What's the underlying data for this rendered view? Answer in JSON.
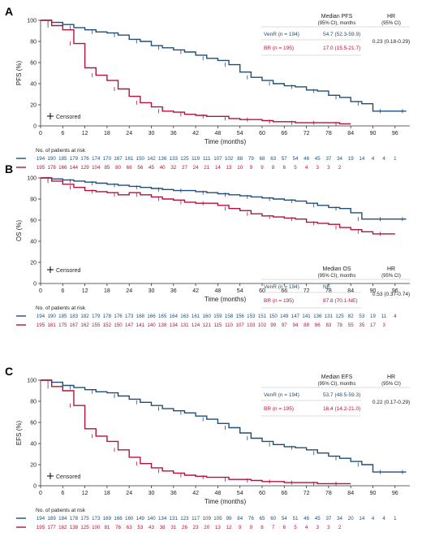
{
  "colors": {
    "venr": "#1f4e79",
    "br": "#b5123a",
    "axis": "#333333",
    "grid": "#cfcfcf"
  },
  "risk_title": "No. of patients at risk",
  "x_ticks": [
    0,
    6,
    12,
    18,
    24,
    30,
    36,
    42,
    48,
    54,
    60,
    66,
    72,
    78,
    84,
    90,
    96
  ],
  "x_risk_times": [
    0,
    3,
    6,
    9,
    12,
    15,
    18,
    21,
    24,
    27,
    30,
    33,
    36,
    39,
    42,
    45,
    48,
    51,
    54,
    57,
    60,
    63,
    66,
    69,
    72,
    75,
    78,
    81,
    84,
    87,
    90,
    93,
    96,
    99
  ],
  "y_ticks": [
    0,
    20,
    40,
    60,
    80,
    100
  ],
  "chart_data": [
    {
      "panel": "A",
      "type": "line",
      "xlabel": "Time (months)",
      "ylabel": "PFS (%)",
      "xlim": [
        0,
        100
      ],
      "ylim": [
        0,
        100
      ],
      "censored_label": "Censored",
      "legend_table": {
        "col1": "Median PFS",
        "col1_sub": "(95% CI), months",
        "col2": "HR",
        "col2_sub": "(95% CI)",
        "rows": [
          {
            "label": "VenR (n = 194)",
            "median": "54.7 (52.3-59.9)"
          },
          {
            "label": "BR (n = 195)",
            "median": "17.0 (15.5-21.7)"
          }
        ],
        "hr": "0.23 (0.18-0.29)"
      },
      "series": [
        {
          "name": "VenR (n = 194)",
          "x": [
            0,
            3,
            6,
            9,
            12,
            15,
            18,
            21,
            24,
            27,
            30,
            33,
            36,
            39,
            42,
            45,
            48,
            51,
            54,
            57,
            60,
            63,
            66,
            69,
            72,
            75,
            78,
            81,
            84,
            87,
            90,
            93,
            96,
            99
          ],
          "y": [
            100,
            98,
            96,
            93,
            91,
            89,
            88,
            86,
            82,
            80,
            76,
            74,
            72,
            70,
            67,
            64,
            62,
            58,
            51,
            46,
            43,
            40,
            38,
            37,
            34,
            33,
            29,
            27,
            23,
            21,
            14,
            14,
            14,
            14
          ],
          "risk": [
            "194",
            "190",
            "185",
            "179",
            "176",
            "174",
            "170",
            "167",
            "161",
            "150",
            "142",
            "136",
            "133",
            "125",
            "119",
            "111",
            "107",
            "102",
            "88",
            "79",
            "68",
            "63",
            "57",
            "54",
            "46",
            "45",
            "37",
            "34",
            "19",
            "14",
            "4",
            "4",
            "1",
            ""
          ]
        },
        {
          "name": "BR (n = 195)",
          "x": [
            0,
            3,
            6,
            9,
            12,
            15,
            18,
            21,
            24,
            27,
            30,
            33,
            36,
            39,
            42,
            45,
            48,
            51,
            54,
            57,
            60,
            63,
            66,
            69,
            72,
            75,
            78,
            81,
            84
          ],
          "y": [
            100,
            95,
            91,
            78,
            55,
            48,
            43,
            35,
            28,
            22,
            18,
            14,
            13,
            11,
            10,
            9,
            9,
            7,
            6,
            6,
            5,
            4,
            4,
            3,
            3,
            3,
            3,
            2,
            2
          ],
          "risk": [
            "195",
            "178",
            "166",
            "144",
            "129",
            "104",
            "85",
            "80",
            "66",
            "56",
            "45",
            "40",
            "32",
            "27",
            "24",
            "21",
            "14",
            "13",
            "10",
            "9",
            "9",
            "8",
            "6",
            "5",
            "4",
            "3",
            "3",
            "2",
            "",
            "",
            "",
            "",
            "",
            ""
          ]
        }
      ]
    },
    {
      "panel": "B",
      "type": "line",
      "xlabel": "Time (months)",
      "ylabel": "OS (%)",
      "xlim": [
        0,
        100
      ],
      "ylim": [
        0,
        100
      ],
      "censored_label": "Censored",
      "legend_table": {
        "col1": "Median OS",
        "col1_sub": "(95% CI), months",
        "col2": "HR",
        "col2_sub": "(95% CI)",
        "rows": [
          {
            "label": "VenR (n = 194)",
            "median": "NE"
          },
          {
            "label": "BR (n = 195)",
            "median": "87.8 (70.1-NE)"
          }
        ],
        "hr": "0.53 (0.37-0.74)"
      },
      "series": [
        {
          "name": "VenR (n = 194)",
          "x": [
            0,
            3,
            6,
            9,
            12,
            15,
            18,
            21,
            24,
            27,
            30,
            33,
            36,
            39,
            42,
            45,
            48,
            51,
            54,
            57,
            60,
            63,
            66,
            69,
            72,
            75,
            78,
            81,
            84,
            87,
            90,
            93,
            96,
            99
          ],
          "y": [
            100,
            99,
            98,
            97,
            96,
            95,
            94,
            93,
            92,
            91,
            90,
            89,
            88,
            88,
            87,
            86,
            85,
            84,
            83,
            82,
            81,
            80,
            79,
            78,
            76,
            74,
            72,
            71,
            67,
            61,
            61,
            61,
            61,
            61
          ],
          "risk": [
            "194",
            "190",
            "185",
            "183",
            "182",
            "179",
            "178",
            "176",
            "173",
            "168",
            "166",
            "165",
            "164",
            "163",
            "161",
            "160",
            "159",
            "158",
            "156",
            "153",
            "151",
            "150",
            "149",
            "147",
            "141",
            "136",
            "131",
            "125",
            "82",
            "53",
            "19",
            "11",
            "4",
            ""
          ]
        },
        {
          "name": "BR (n = 195)",
          "x": [
            0,
            3,
            6,
            9,
            12,
            15,
            18,
            21,
            24,
            27,
            30,
            33,
            36,
            39,
            42,
            45,
            48,
            51,
            54,
            57,
            60,
            63,
            66,
            69,
            72,
            75,
            78,
            81,
            84,
            87,
            90,
            93,
            96
          ],
          "y": [
            100,
            97,
            94,
            91,
            88,
            87,
            86,
            84,
            86,
            84,
            82,
            80,
            79,
            77,
            76,
            76,
            74,
            71,
            69,
            66,
            64,
            63,
            62,
            61,
            58,
            57,
            56,
            53,
            51,
            49,
            47,
            47,
            47
          ],
          "risk": [
            "195",
            "181",
            "175",
            "167",
            "162",
            "155",
            "152",
            "150",
            "147",
            "141",
            "140",
            "138",
            "134",
            "131",
            "124",
            "121",
            "115",
            "110",
            "107",
            "103",
            "102",
            "99",
            "97",
            "94",
            "88",
            "86",
            "83",
            "78",
            "55",
            "35",
            "17",
            "3",
            "",
            ""
          ]
        }
      ]
    },
    {
      "panel": "C",
      "type": "line",
      "xlabel": "Time (months)",
      "ylabel": "EFS (%)",
      "xlim": [
        0,
        100
      ],
      "ylim": [
        0,
        100
      ],
      "censored_label": "Censored",
      "legend_table": {
        "col1": "Median EFS",
        "col1_sub": "(95% CI), months",
        "col2": "HR",
        "col2_sub": "(95% CI)",
        "rows": [
          {
            "label": "VenR (n = 194)",
            "median": "53.7 (48.5-59.3)"
          },
          {
            "label": "BR (n = 195)",
            "median": "16.4 (14.2-21.0)"
          }
        ],
        "hr": "0.22 (0.17-0.29)"
      },
      "series": [
        {
          "name": "VenR (n = 194)",
          "x": [
            0,
            3,
            6,
            9,
            12,
            15,
            18,
            21,
            24,
            27,
            30,
            33,
            36,
            39,
            42,
            45,
            48,
            51,
            54,
            57,
            60,
            63,
            66,
            69,
            72,
            75,
            78,
            81,
            84,
            87,
            90,
            93,
            96,
            99
          ],
          "y": [
            100,
            98,
            95,
            93,
            91,
            89,
            88,
            85,
            82,
            79,
            76,
            73,
            71,
            69,
            66,
            63,
            59,
            55,
            50,
            45,
            42,
            39,
            37,
            36,
            34,
            31,
            28,
            26,
            23,
            20,
            13,
            13,
            13,
            13
          ],
          "risk": [
            "194",
            "189",
            "184",
            "178",
            "175",
            "173",
            "169",
            "166",
            "160",
            "149",
            "140",
            "134",
            "131",
            "123",
            "117",
            "109",
            "105",
            "99",
            "84",
            "76",
            "65",
            "60",
            "54",
            "51",
            "46",
            "45",
            "37",
            "34",
            "20",
            "14",
            "4",
            "4",
            "1",
            ""
          ]
        },
        {
          "name": "BR (n = 195)",
          "x": [
            0,
            3,
            6,
            9,
            12,
            15,
            18,
            21,
            24,
            27,
            30,
            33,
            36,
            39,
            42,
            45,
            48,
            51,
            54,
            57,
            60,
            63,
            66,
            69,
            72,
            75,
            78,
            81,
            84
          ],
          "y": [
            100,
            94,
            90,
            76,
            54,
            47,
            42,
            34,
            27,
            21,
            17,
            14,
            12,
            10,
            9,
            8,
            8,
            6,
            6,
            5,
            4,
            4,
            3,
            3,
            3,
            2,
            2,
            2,
            2
          ],
          "risk": [
            "195",
            "177",
            "162",
            "138",
            "125",
            "100",
            "81",
            "76",
            "63",
            "53",
            "43",
            "38",
            "31",
            "26",
            "23",
            "20",
            "13",
            "12",
            "9",
            "9",
            "8",
            "7",
            "6",
            "5",
            "4",
            "3",
            "3",
            "2",
            "",
            "",
            "",
            "",
            "",
            ""
          ]
        }
      ]
    }
  ]
}
